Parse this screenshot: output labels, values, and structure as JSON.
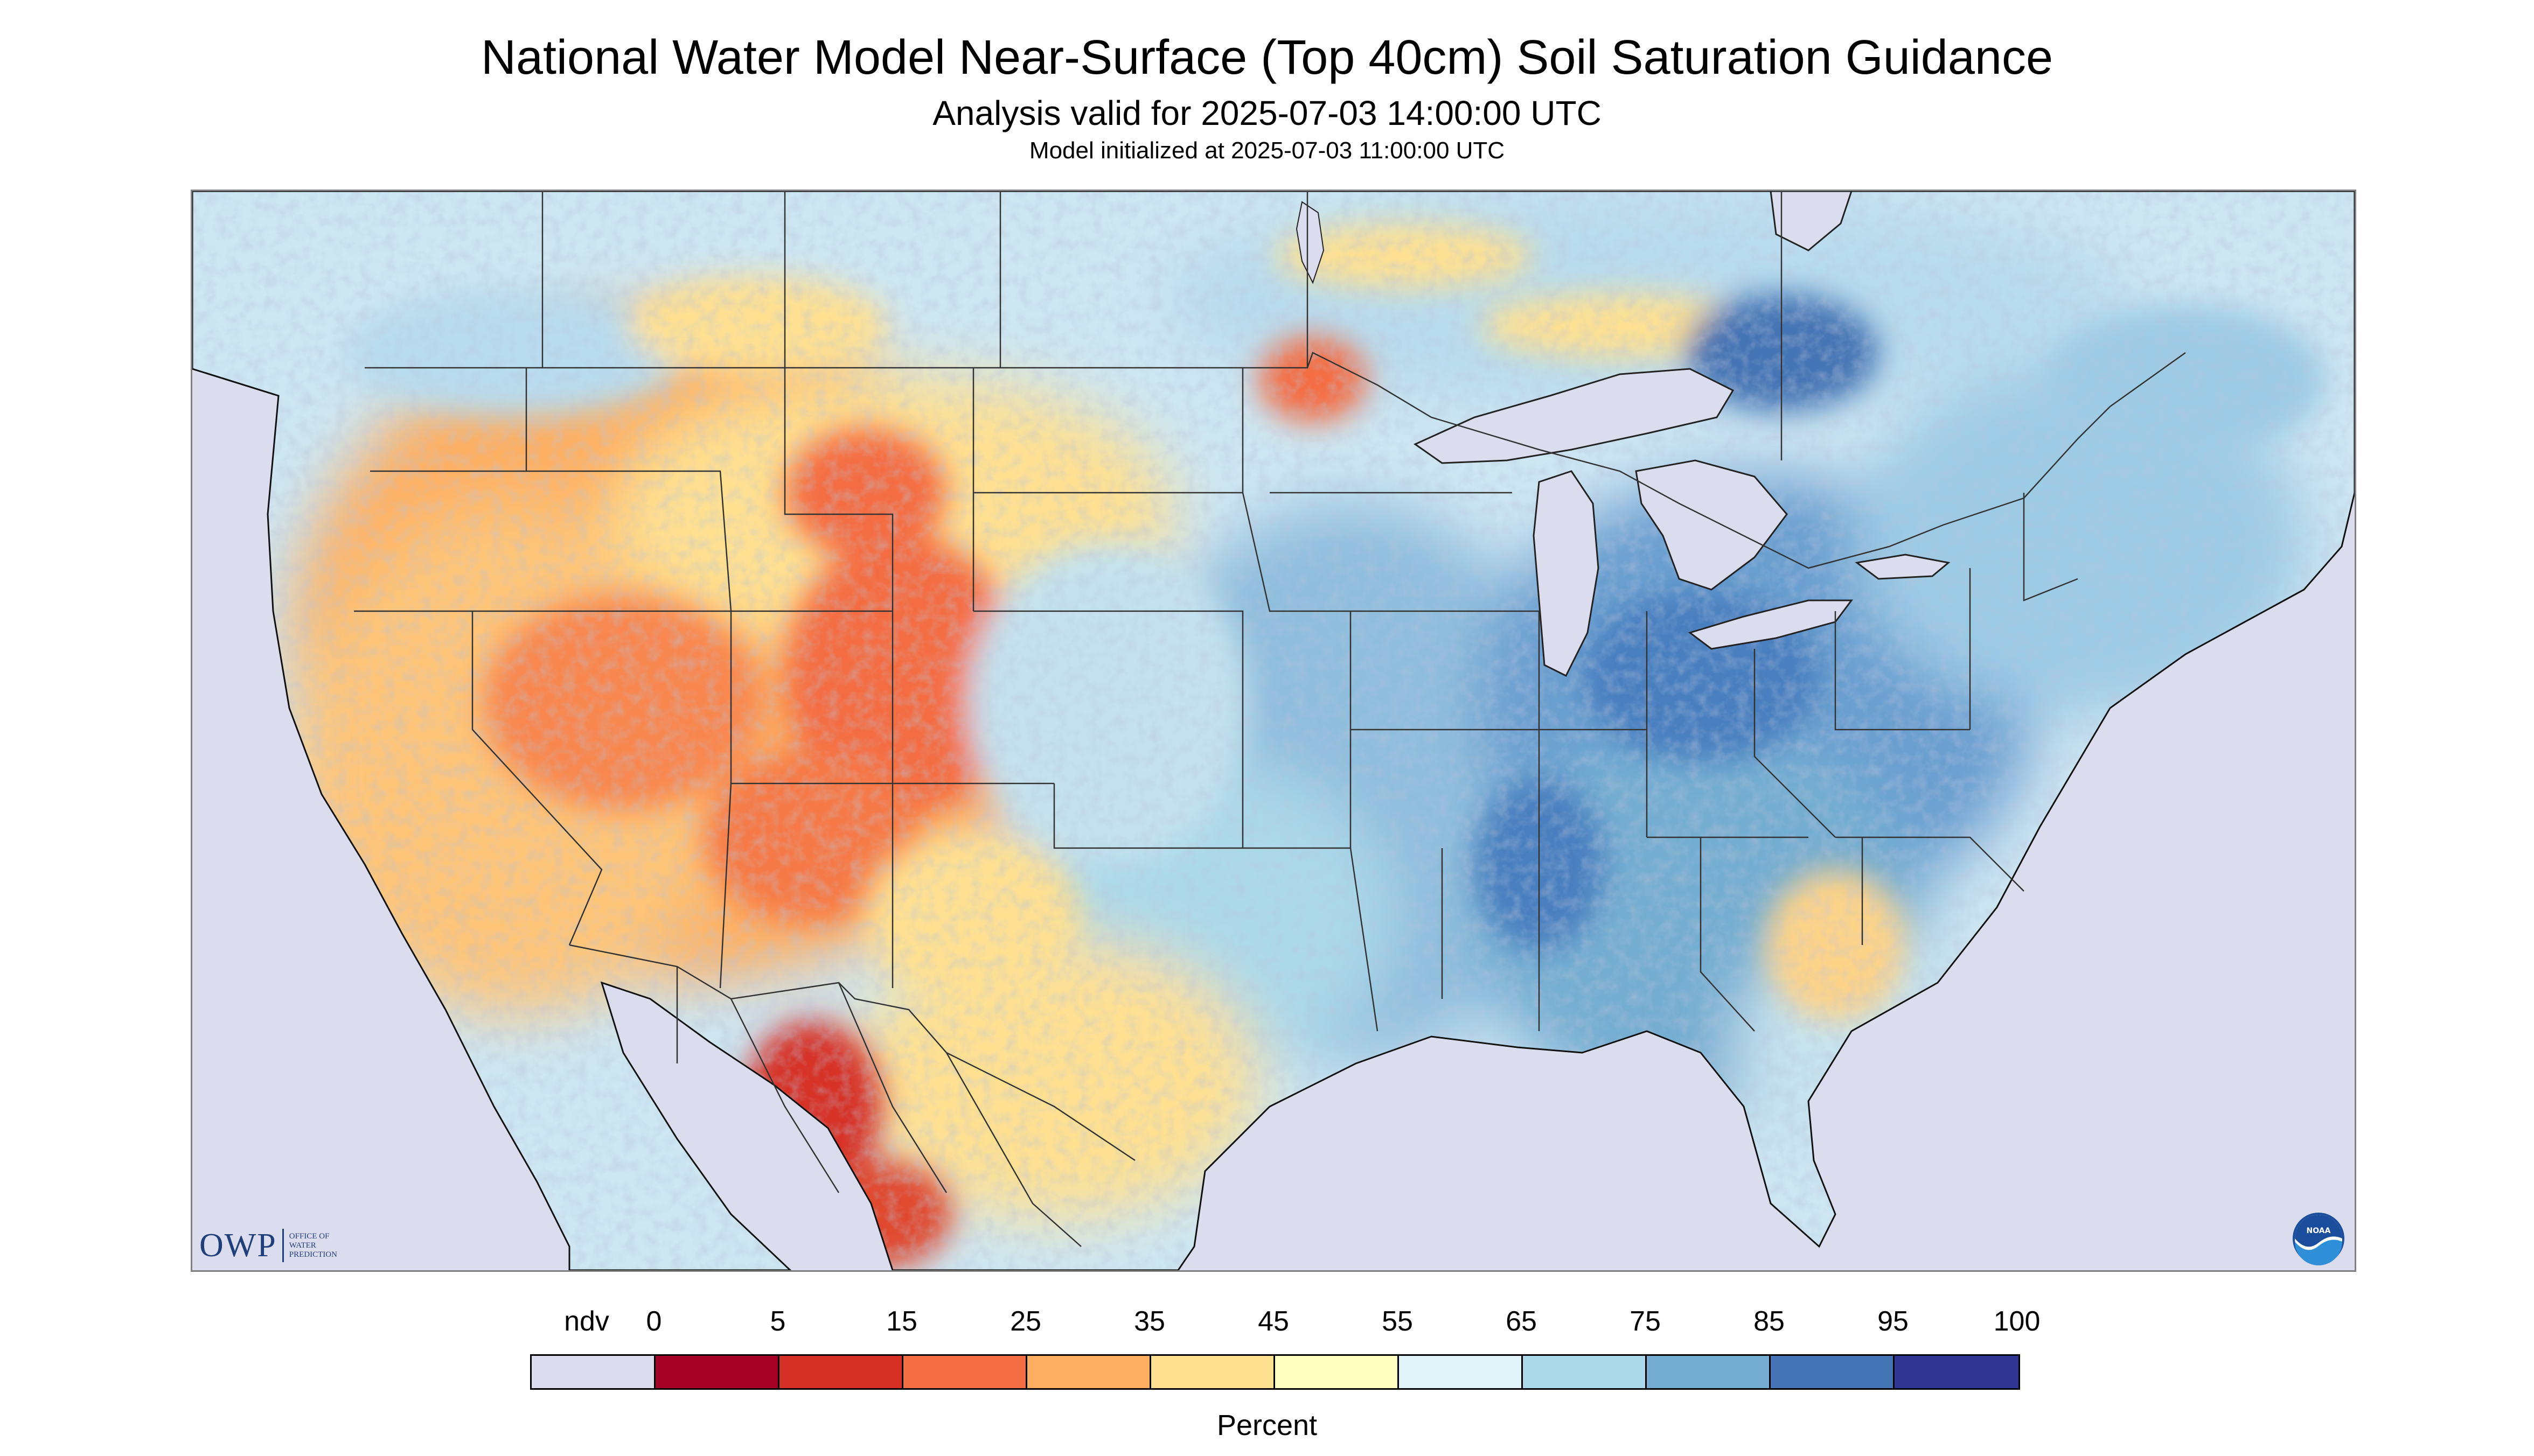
{
  "header": {
    "title": "National Water Model Near-Surface (Top 40cm) Soil Saturation Guidance",
    "subtitle": "Analysis valid for 2025-07-03 14:00:00 UTC",
    "init_line": "Model initialized at 2025-07-03 11:00:00 UTC"
  },
  "map": {
    "ndv_color": "#dcdcef",
    "land_base_color": "#cde6f2",
    "lake_color": "#dcdcef",
    "boundary_color": "#333333"
  },
  "logos": {
    "owp": {
      "main": "OWP",
      "line1": "Office of",
      "line2": "Water",
      "line3": "Prediction"
    },
    "noaa": {
      "icon": "noaa-emblem-icon",
      "text": "NOAA"
    }
  },
  "legend": {
    "unit": "Percent",
    "labels": [
      "ndv",
      "0",
      "5",
      "15",
      "25",
      "35",
      "45",
      "55",
      "65",
      "75",
      "85",
      "95",
      "100"
    ],
    "colors": [
      "#dcdcef",
      "#a50026",
      "#d73027",
      "#f46d43",
      "#fdae61",
      "#fee090",
      "#ffffbf",
      "#e0f3f8",
      "#abd9e9",
      "#74add1",
      "#4575b4",
      "#313695"
    ]
  }
}
